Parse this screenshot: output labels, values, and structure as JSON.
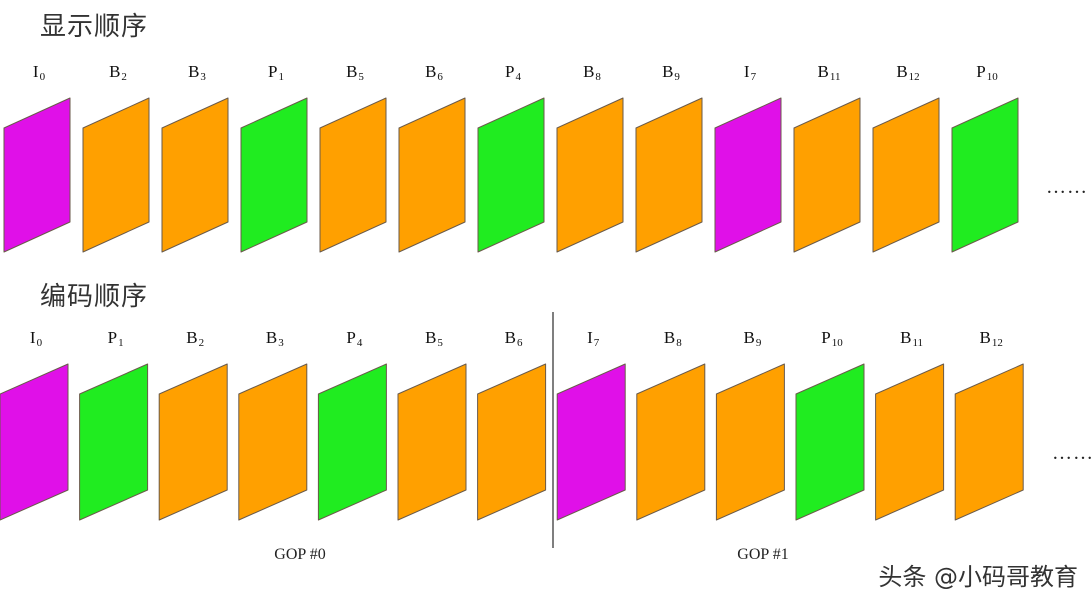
{
  "colors": {
    "I": "#e010e8",
    "P": "#20ec20",
    "B": "#ffa000",
    "stroke": "#6a5a4a"
  },
  "display": {
    "title": "显示顺序",
    "frames": [
      {
        "type": "I",
        "num": "0"
      },
      {
        "type": "B",
        "num": "2"
      },
      {
        "type": "B",
        "num": "3"
      },
      {
        "type": "P",
        "num": "1"
      },
      {
        "type": "B",
        "num": "5"
      },
      {
        "type": "B",
        "num": "6"
      },
      {
        "type": "P",
        "num": "4"
      },
      {
        "type": "B",
        "num": "8"
      },
      {
        "type": "B",
        "num": "9"
      },
      {
        "type": "I",
        "num": "7"
      },
      {
        "type": "B",
        "num": "11"
      },
      {
        "type": "B",
        "num": "12"
      },
      {
        "type": "P",
        "num": "10"
      }
    ],
    "ellipsis": "……"
  },
  "encoding": {
    "title": "编码顺序",
    "frames": [
      {
        "type": "I",
        "num": "0"
      },
      {
        "type": "P",
        "num": "1"
      },
      {
        "type": "B",
        "num": "2"
      },
      {
        "type": "B",
        "num": "3"
      },
      {
        "type": "P",
        "num": "4"
      },
      {
        "type": "B",
        "num": "5"
      },
      {
        "type": "B",
        "num": "6"
      },
      {
        "type": "I",
        "num": "7"
      },
      {
        "type": "B",
        "num": "8"
      },
      {
        "type": "B",
        "num": "9"
      },
      {
        "type": "P",
        "num": "10"
      },
      {
        "type": "B",
        "num": "11"
      },
      {
        "type": "B",
        "num": "12"
      }
    ],
    "ellipsis": "……",
    "gops": [
      "GOP #0",
      "GOP #1"
    ]
  },
  "watermark": "头条 @小码哥教育"
}
